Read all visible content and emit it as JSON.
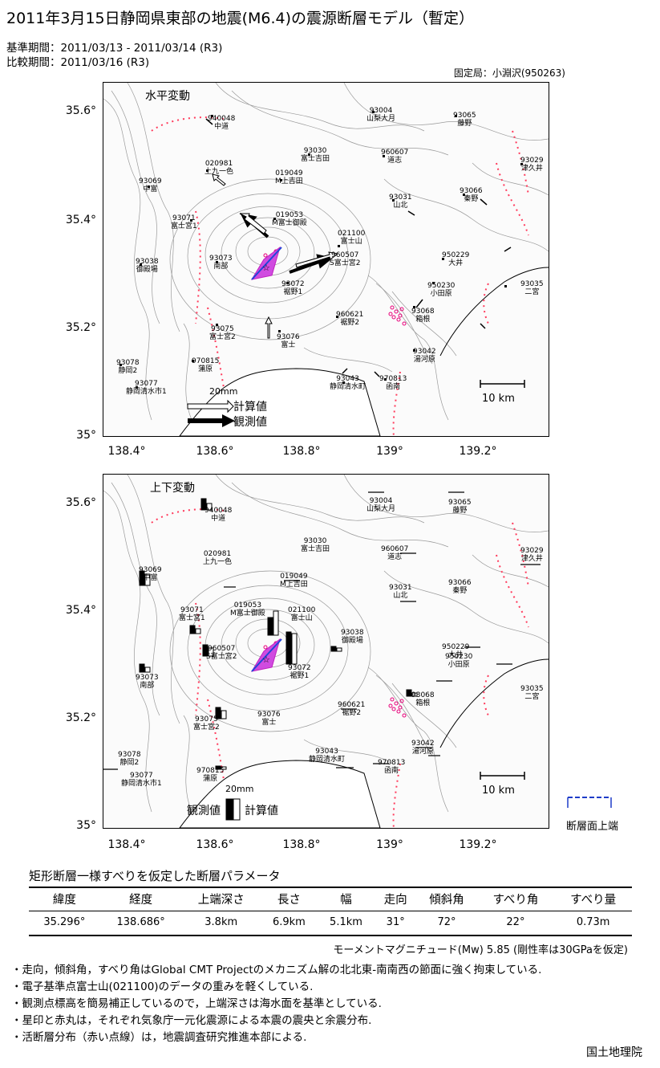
{
  "title": "2011年3月15日静岡県東部の地震(M6.4)の震源断層モデル（暫定）",
  "reference_period": "基準期間：2011/03/13 - 2011/03/14 (R3)",
  "comparison_period": "比較期間：2011/03/16 (R3)",
  "fixed_station": "固定局：小淵沢(950263)",
  "lat_ticks": [
    "35.6°",
    "35.4°",
    "35.2°",
    "35°"
  ],
  "lon_ticks": [
    "138.4°",
    "138.6°",
    "138.8°",
    "139°",
    "139.2°"
  ],
  "horizontal_map": {
    "title": "水平変動",
    "scale_label": "10 km",
    "legend_scale": "20mm",
    "legend_calc": "計算値",
    "legend_obs": "観測値"
  },
  "vertical_map": {
    "title": "上下変動",
    "scale_label": "10 km",
    "legend_scale": "20mm",
    "legend_calc": "計算値",
    "legend_obs": "観測値"
  },
  "h_stations": [
    {
      "code": "940048",
      "name": "中道"
    },
    {
      "code": "93004",
      "name": "山梨大月"
    },
    {
      "code": "93065",
      "name": "藤野"
    },
    {
      "code": "020981",
      "name": "上九一色"
    },
    {
      "code": "93030",
      "name": "富士吉田"
    },
    {
      "code": "960607",
      "name": "道志"
    },
    {
      "code": "93029",
      "name": "津久井"
    },
    {
      "code": "93069",
      "name": "中富"
    },
    {
      "code": "019049",
      "name": "M上吉田"
    },
    {
      "code": "93031",
      "name": "山北"
    },
    {
      "code": "93066",
      "name": "秦野"
    },
    {
      "code": "93071",
      "name": "富士宮1"
    },
    {
      "code": "019053",
      "name": "M富士御殿"
    },
    {
      "code": "021100",
      "name": "富士山"
    },
    {
      "code": "93038",
      "name": "御殿場"
    },
    {
      "code": "93073",
      "name": "南部"
    },
    {
      "code": "960507",
      "name": "S富士宮2"
    },
    {
      "code": "93072",
      "name": "裾野1"
    },
    {
      "code": "950229",
      "name": "大井"
    },
    {
      "code": "950230",
      "name": "小田原"
    },
    {
      "code": "93035",
      "name": "二宮"
    },
    {
      "code": "960621",
      "name": "裾野2"
    },
    {
      "code": "93068",
      "name": "箱根"
    },
    {
      "code": "93075",
      "name": "富士宮2"
    },
    {
      "code": "93076",
      "name": "富士"
    },
    {
      "code": "93042",
      "name": "湯河原"
    },
    {
      "code": "970815",
      "name": "蒲原"
    },
    {
      "code": "93078",
      "name": "静岡2"
    },
    {
      "code": "93043",
      "name": "静岡清水町"
    },
    {
      "code": "970813",
      "name": "函南"
    },
    {
      "code": "93077",
      "name": "静岡清水市1"
    }
  ],
  "param_section_title": "矩形断層一様すべりを仮定した断層パラメータ",
  "param_headers": [
    "緯度",
    "経度",
    "上端深さ",
    "長さ",
    "幅",
    "走向",
    "傾斜角",
    "すべり角",
    "すべり量"
  ],
  "param_values": [
    "35.296°",
    "138.686°",
    "3.8km",
    "6.9km",
    "5.1km",
    "31°",
    "72°",
    "22°",
    "0.73m"
  ],
  "moment_text": "モーメントマグニチュード(Mw) 5.85 (剛性率は30GPaを仮定)",
  "notes": [
    "・走向，傾斜角，すべり角はGlobal CMT Projectのメカニズム解の北北東-南南西の節面に強く拘束している.",
    "・電子基準点富士山(021100)のデータの重みを軽くしている.",
    "・観測点標高を簡易補正しているので，上端深さは海水面を基準としている.",
    "・星印と赤丸は，それぞれ気象庁一元化震源による本震の震央と余震分布.",
    "・活断層分布（赤い点線）は，地震調査研究推進本部による."
  ],
  "fault_legend_label": "断層面上端",
  "organization": "国土地理院"
}
